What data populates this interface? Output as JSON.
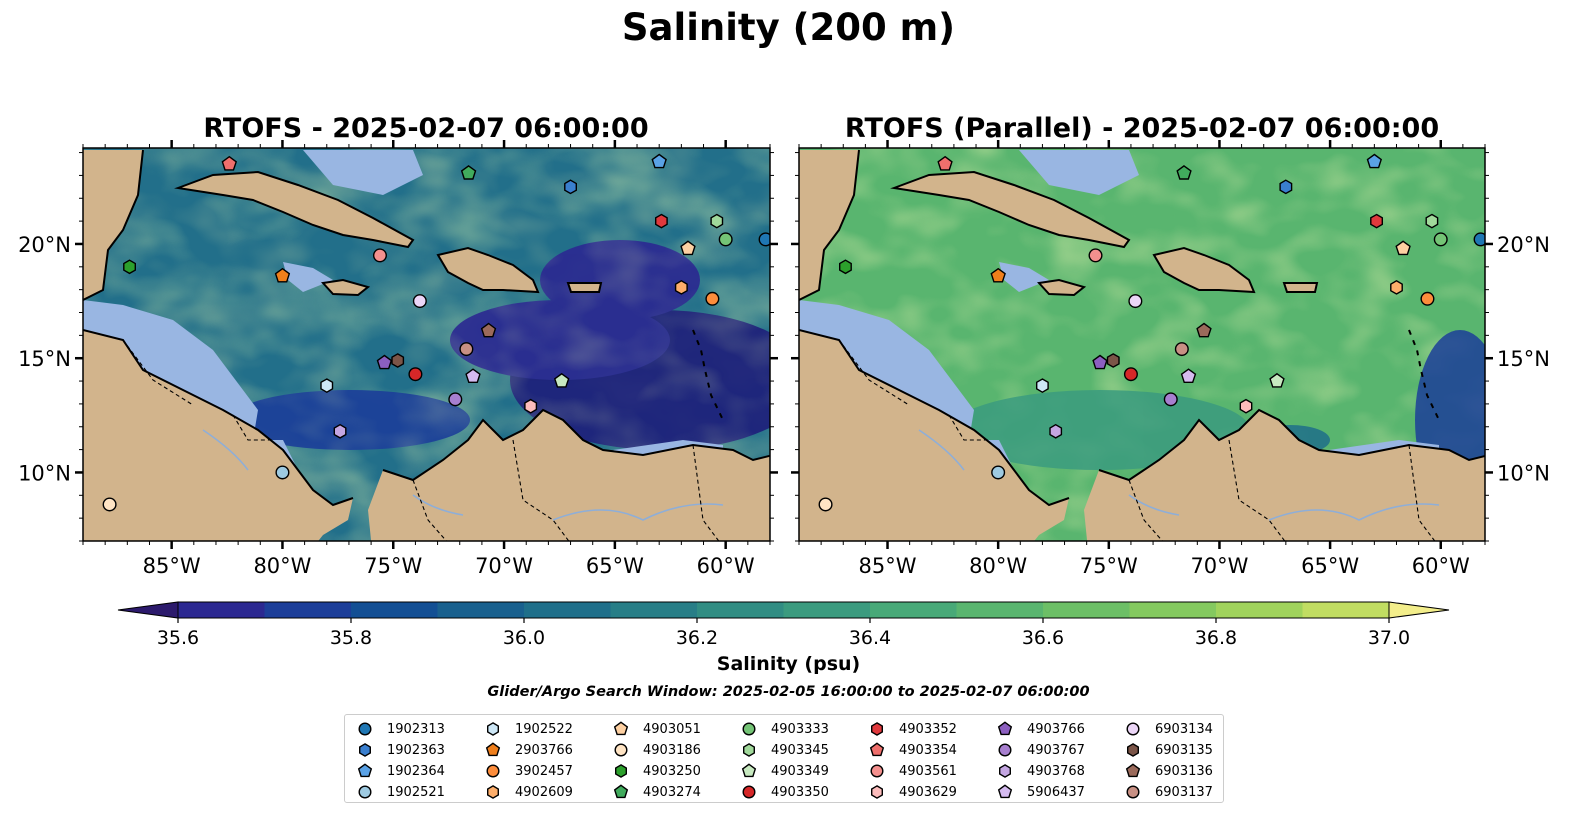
{
  "figure": {
    "title": "Salinity (200 m)",
    "colorbar_label": "Salinity (psu)",
    "search_window": "Glider/Argo Search Window: 2025-02-05 16:00:00 to 2025-02-07 06:00:00",
    "colors": {
      "land": "#d2b48c",
      "shallow_mask": "#99b6e2",
      "coastline": "#000000"
    }
  },
  "chart_data": [
    {
      "type": "heatmap",
      "title": "RTOFS - 2025-02-07 06:00:00",
      "xlim": [
        -89,
        -58
      ],
      "ylim": [
        7,
        24.2
      ],
      "x_ticks": [
        -85,
        -80,
        -75,
        -70,
        -65,
        -60
      ],
      "x_tick_labels": [
        "85°W",
        "80°W",
        "75°W",
        "70°W",
        "65°W",
        "60°W"
      ],
      "y_ticks": [
        10,
        15,
        20
      ],
      "y_tick_labels": [
        "10°N",
        "15°N",
        "20°N"
      ],
      "y_axis_side": "left",
      "dominant_field": "35.6-36.4 psu (blue/teal), fresh eastern Caribbean and Pacific"
    },
    {
      "type": "heatmap",
      "title": "RTOFS (Parallel) - 2025-02-07 06:00:00",
      "xlim": [
        -89,
        -58
      ],
      "ylim": [
        7,
        24.2
      ],
      "x_ticks": [
        -85,
        -80,
        -75,
        -70,
        -65,
        -60
      ],
      "x_tick_labels": [
        "85°W",
        "80°W",
        "75°W",
        "70°W",
        "65°W",
        "60°W"
      ],
      "y_ticks": [
        10,
        15,
        20
      ],
      "y_tick_labels": [
        "10°N",
        "15°N",
        "20°N"
      ],
      "y_axis_side": "right",
      "dominant_field": "36.4-36.8 psu (green), fresh Pacific and eastern margin"
    },
    {
      "type": "colorbar",
      "label": "Salinity (psu)",
      "levels": [
        35.5,
        35.6,
        35.7,
        35.8,
        35.9,
        36.0,
        36.1,
        36.2,
        36.3,
        36.4,
        36.5,
        36.6,
        36.7,
        36.8,
        36.9,
        37.0,
        37.1
      ],
      "colors": [
        "#2c1a6c",
        "#2b2891",
        "#1c3e99",
        "#134f94",
        "#19608e",
        "#1f6f8a",
        "#287e87",
        "#318d83",
        "#3b9b7f",
        "#48a978",
        "#59b56f",
        "#6cbf66",
        "#84c95f",
        "#a0d35c",
        "#c1dd62",
        "#f3ee8b"
      ],
      "tick_values": [
        35.6,
        35.8,
        36.0,
        36.2,
        36.4,
        36.6,
        36.8,
        37.0
      ],
      "tick_labels": [
        "35.6",
        "35.8",
        "36.0",
        "36.2",
        "36.4",
        "36.6",
        "36.8",
        "37.0"
      ],
      "extend": "both"
    },
    {
      "type": "scatter",
      "legend_position": "bottom-center",
      "series": [
        {
          "name": "1902313",
          "marker": "circle",
          "color": "#1f77b4",
          "lon": -58.2,
          "lat": 20.2
        },
        {
          "name": "1902363",
          "marker": "hexagon",
          "color": "#3a7fcf",
          "lon": -67.0,
          "lat": 22.5
        },
        {
          "name": "1902364",
          "marker": "pentagon",
          "color": "#5aa2e6",
          "lon": -63.0,
          "lat": 23.6
        },
        {
          "name": "1902521",
          "marker": "circle",
          "color": "#9ecae1",
          "lon": -80.0,
          "lat": 10.0
        },
        {
          "name": "1902522",
          "marker": "hexagon",
          "color": "#cde7f6",
          "lon": -78.0,
          "lat": 13.8
        },
        {
          "name": "2903766",
          "marker": "pentagon",
          "color": "#f07f1c",
          "lon": -80.0,
          "lat": 18.6
        },
        {
          "name": "3902457",
          "marker": "circle",
          "color": "#fd8d3c",
          "lon": -60.6,
          "lat": 17.6
        },
        {
          "name": "4902609",
          "marker": "hexagon",
          "color": "#fdae6b",
          "lon": -62.0,
          "lat": 18.1
        },
        {
          "name": "4903051",
          "marker": "pentagon",
          "color": "#fdd0a2",
          "lon": -61.7,
          "lat": 19.8
        },
        {
          "name": "4903186",
          "marker": "circle",
          "color": "#ffe4c4",
          "lon": -87.8,
          "lat": 8.6
        },
        {
          "name": "4903250",
          "marker": "hexagon",
          "color": "#2ca02c",
          "lon": -86.9,
          "lat": 19.0
        },
        {
          "name": "4903274",
          "marker": "pentagon",
          "color": "#41ab5d",
          "lon": -71.6,
          "lat": 23.1
        },
        {
          "name": "4903333",
          "marker": "circle",
          "color": "#74c476",
          "lon": -60.0,
          "lat": 20.2
        },
        {
          "name": "4903345",
          "marker": "hexagon",
          "color": "#a1d99b",
          "lon": -60.4,
          "lat": 21.0
        },
        {
          "name": "4903349",
          "marker": "pentagon",
          "color": "#c7e9c0",
          "lon": -67.4,
          "lat": 14.0
        },
        {
          "name": "4903350",
          "marker": "circle",
          "color": "#d62728",
          "lon": -74.0,
          "lat": 14.3
        },
        {
          "name": "4903352",
          "marker": "hexagon",
          "color": "#e0393d",
          "lon": -62.9,
          "lat": 21.0
        },
        {
          "name": "4903354",
          "marker": "pentagon",
          "color": "#ef6f6c",
          "lon": -82.4,
          "lat": 23.5
        },
        {
          "name": "4903561",
          "marker": "circle",
          "color": "#f4908e",
          "lon": -75.6,
          "lat": 19.5
        },
        {
          "name": "4903629",
          "marker": "hexagon",
          "color": "#fcbcbc",
          "lon": -68.8,
          "lat": 12.9
        },
        {
          "name": "4903766",
          "marker": "pentagon",
          "color": "#8c5fc0",
          "lon": -75.4,
          "lat": 14.8
        },
        {
          "name": "4903767",
          "marker": "circle",
          "color": "#a77fcf",
          "lon": -72.2,
          "lat": 13.2
        },
        {
          "name": "4903768",
          "marker": "hexagon",
          "color": "#c4a6e2",
          "lon": -77.4,
          "lat": 11.8
        },
        {
          "name": "5906437",
          "marker": "pentagon",
          "color": "#d5bbf0",
          "lon": -71.4,
          "lat": 14.2
        },
        {
          "name": "6903134",
          "marker": "circle",
          "color": "#ecd6f7",
          "lon": -73.8,
          "lat": 17.5
        },
        {
          "name": "6903135",
          "marker": "hexagon",
          "color": "#7b5548",
          "lon": -74.8,
          "lat": 14.9
        },
        {
          "name": "6903136",
          "marker": "pentagon",
          "color": "#9b6a5b",
          "lon": -70.7,
          "lat": 16.2
        },
        {
          "name": "6903137",
          "marker": "circle",
          "color": "#c89084",
          "lon": -71.7,
          "lat": 15.4
        }
      ]
    }
  ]
}
